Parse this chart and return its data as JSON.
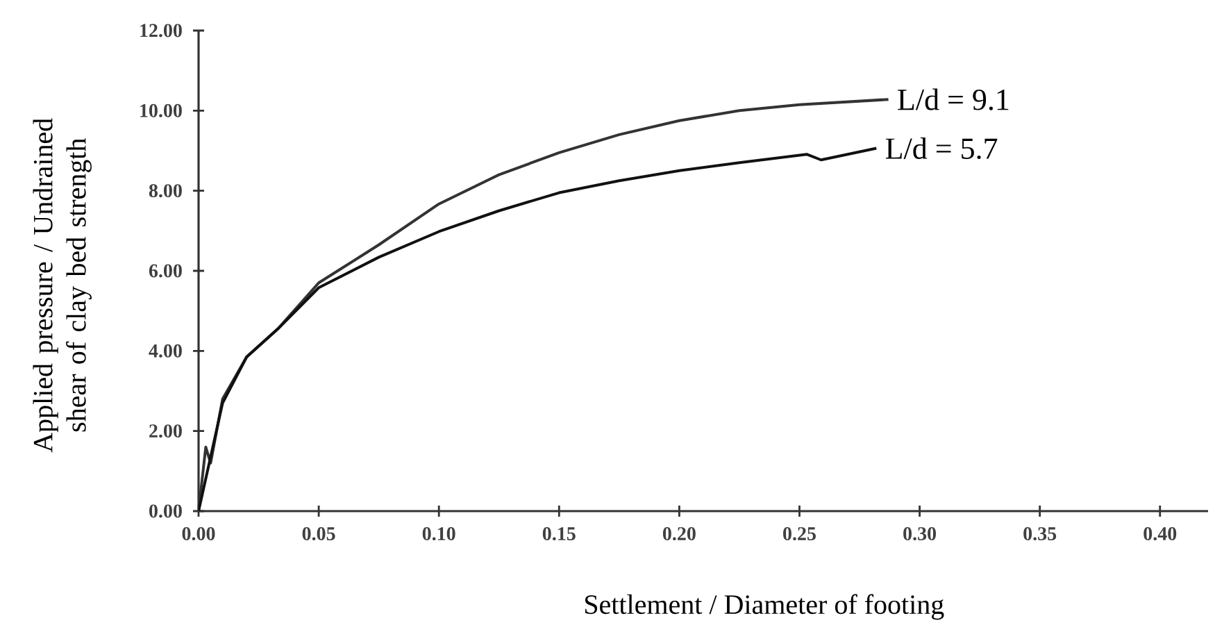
{
  "chart_data": {
    "type": "line",
    "xlabel": "Settlement / Diameter of footing",
    "ylabel": "Applied pressure / Undrained shear of clay bed strength",
    "xlim": [
      0,
      0.42
    ],
    "ylim": [
      0,
      12
    ],
    "xticks": [
      {
        "value": 0,
        "label": "0.00"
      },
      {
        "value": 0.05,
        "label": "0.05"
      },
      {
        "value": 0.1,
        "label": "0.10"
      },
      {
        "value": 0.15,
        "label": "0.15"
      },
      {
        "value": 0.2,
        "label": "0.20"
      },
      {
        "value": 0.25,
        "label": "0.25"
      },
      {
        "value": 0.3,
        "label": "0.30"
      },
      {
        "value": 0.35,
        "label": "0.35"
      },
      {
        "value": 0.4,
        "label": "0.40"
      }
    ],
    "yticks": [
      {
        "value": 0,
        "label": "0.00"
      },
      {
        "value": 2,
        "label": "2.00"
      },
      {
        "value": 4,
        "label": "4.00"
      },
      {
        "value": 6,
        "label": "6.00"
      },
      {
        "value": 8,
        "label": "8.00"
      },
      {
        "value": 10,
        "label": "10.00"
      },
      {
        "value": 12,
        "label": "12.00"
      }
    ],
    "grid": false,
    "legend": false,
    "marker": "none",
    "line_style": "solid",
    "series": [
      {
        "name": "L/d = 9.1",
        "color": "#333333",
        "x": [
          0,
          0.003,
          0.005,
          0.01,
          0.02,
          0.033,
          0.05,
          0.075,
          0.1,
          0.125,
          0.15,
          0.175,
          0.2,
          0.225,
          0.25,
          0.287
        ],
        "values": [
          0,
          1.6,
          1.2,
          2.8,
          3.85,
          4.55,
          5.7,
          6.65,
          7.67,
          8.4,
          8.95,
          9.4,
          9.75,
          10.0,
          10.15,
          10.28
        ]
      },
      {
        "name": "L/d = 5.7",
        "color": "#111111",
        "x": [
          0,
          0.01,
          0.02,
          0.033,
          0.05,
          0.075,
          0.1,
          0.125,
          0.15,
          0.175,
          0.2,
          0.225,
          0.253,
          0.259,
          0.282
        ],
        "values": [
          0,
          2.7,
          3.85,
          4.55,
          5.58,
          6.34,
          6.98,
          7.5,
          7.95,
          8.25,
          8.5,
          8.7,
          8.91,
          8.77,
          9.06
        ]
      }
    ]
  }
}
